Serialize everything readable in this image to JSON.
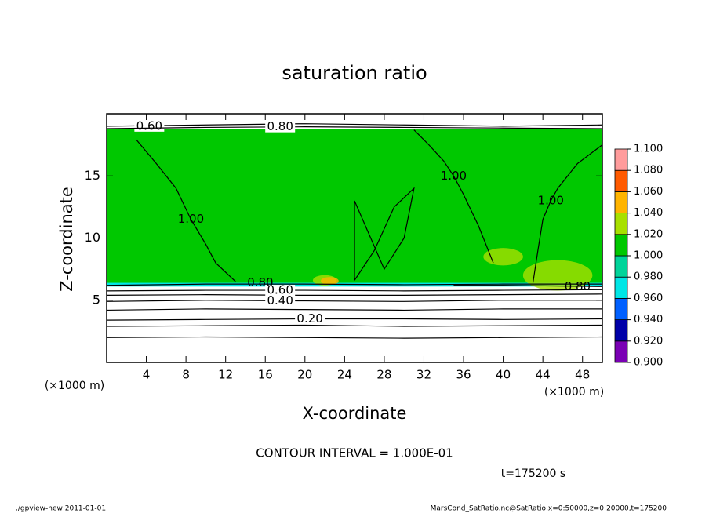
{
  "chart_data": {
    "type": "contour",
    "title": "saturation ratio",
    "xlabel": "X-coordinate",
    "ylabel": "Z-coordinate",
    "x_unit_label": "(×1000 m)",
    "xlim": [
      0,
      50
    ],
    "ylim": [
      0,
      20
    ],
    "xticks": [
      4,
      8,
      12,
      16,
      20,
      24,
      28,
      32,
      36,
      40,
      44,
      48
    ],
    "yticks": [
      5,
      10,
      15
    ],
    "colorbar": {
      "ticks": [
        {
          "value": 0.9,
          "label": "0.900"
        },
        {
          "value": 0.92,
          "label": "0.920"
        },
        {
          "value": 0.94,
          "label": "0.940"
        },
        {
          "value": 0.96,
          "label": "0.960"
        },
        {
          "value": 0.98,
          "label": "0.980"
        },
        {
          "value": 1.0,
          "label": "1.000"
        },
        {
          "value": 1.02,
          "label": "1.020"
        },
        {
          "value": 1.04,
          "label": "1.040"
        },
        {
          "value": 1.06,
          "label": "1.060"
        },
        {
          "value": 1.08,
          "label": "1.080"
        },
        {
          "value": 1.1,
          "label": "1.100"
        }
      ],
      "colors": [
        "#7a00b4",
        "#0000a8",
        "#0060ff",
        "#00e6e6",
        "#00d49a",
        "#00c800",
        "#a8e000",
        "#ffb400",
        "#ff5a00",
        "#ff9c9c"
      ]
    },
    "regions": [
      {
        "value": 0.97,
        "x": [
          0,
          50
        ],
        "z": [
          6.1,
          6.5
        ]
      },
      {
        "value": 1.01,
        "x": [
          0,
          50
        ],
        "z": [
          6.4,
          18.8
        ]
      },
      {
        "value": 1.03,
        "x": [
          45.5,
          22,
          40
        ],
        "z": [
          7.0,
          6.6,
          8.5
        ],
        "r": [
          3.5,
          1.2,
          2
        ]
      },
      {
        "value": 1.05,
        "x": [
          22.5
        ],
        "z": [
          6.55
        ],
        "r": [
          0.9
        ]
      }
    ],
    "contours": [
      {
        "level": 0.1,
        "x": [
          0,
          10,
          20,
          30,
          40,
          50
        ],
        "z": [
          2.0,
          2.05,
          2.0,
          1.95,
          2.0,
          2.05
        ]
      },
      {
        "level": 0.15,
        "x": [
          0,
          10,
          20,
          30,
          40,
          50
        ],
        "z": [
          2.9,
          2.95,
          3.0,
          2.9,
          2.95,
          3.0
        ]
      },
      {
        "level": 0.2,
        "label": "0.20",
        "label_at": [
          20.5,
          3.5
        ],
        "x": [
          0,
          10,
          20,
          30,
          40,
          50
        ],
        "z": [
          3.4,
          3.45,
          3.5,
          3.5,
          3.45,
          3.5
        ]
      },
      {
        "level": 0.3,
        "x": [
          0,
          10,
          20,
          30,
          40,
          50
        ],
        "z": [
          4.2,
          4.3,
          4.25,
          4.2,
          4.3,
          4.3
        ]
      },
      {
        "level": 0.4,
        "label": "0.40",
        "label_at": [
          17.5,
          4.95
        ],
        "x": [
          0,
          10,
          20,
          30,
          40,
          50
        ],
        "z": [
          4.9,
          5.0,
          4.95,
          4.9,
          5.0,
          5.0
        ]
      },
      {
        "level": 0.5,
        "x": [
          0,
          10,
          20,
          30,
          40,
          50
        ],
        "z": [
          5.4,
          5.45,
          5.4,
          5.4,
          5.45,
          5.5
        ]
      },
      {
        "level": 0.6,
        "label": "0.60",
        "label_at": [
          17.5,
          5.8
        ],
        "x": [
          0,
          10,
          20,
          30,
          40,
          50
        ],
        "z": [
          5.75,
          5.8,
          5.8,
          5.75,
          5.8,
          5.85
        ]
      },
      {
        "level": 0.8,
        "label": "0.80",
        "label_at": [
          15.5,
          6.4
        ],
        "x": [
          0,
          10,
          20,
          30,
          40,
          50
        ],
        "z": [
          6.2,
          6.3,
          6.3,
          6.25,
          6.3,
          6.3
        ]
      },
      {
        "level": 0.8,
        "label": "0.80",
        "label_at": [
          47.5,
          6.1
        ],
        "x": [
          35,
          40,
          45,
          50
        ],
        "z": [
          6.2,
          6.2,
          6.15,
          6.1
        ]
      },
      {
        "level": 0.6,
        "label": "0.60",
        "label_at": [
          4.3,
          19.0
        ],
        "x": [
          0,
          10,
          20,
          30,
          40,
          50
        ],
        "z": [
          19.0,
          19.1,
          19.2,
          19.1,
          19.0,
          19.1
        ]
      },
      {
        "level": 0.8,
        "label": "0.80",
        "label_at": [
          17.5,
          18.95
        ],
        "x": [
          0,
          10,
          20,
          30,
          40,
          50
        ],
        "z": [
          18.8,
          18.9,
          18.95,
          18.9,
          18.85,
          18.8
        ]
      },
      {
        "level": 1.0,
        "label": "1.00",
        "label_at": [
          8.5,
          11.5
        ],
        "x": [
          3,
          5,
          7,
          8.5,
          10,
          11,
          13
        ],
        "z": [
          17.9,
          16,
          14,
          11.5,
          9.5,
          8,
          6.5
        ]
      },
      {
        "level": 1.0,
        "label": "1.00",
        "label_at": [
          35,
          15
        ],
        "x": [
          31,
          32.5,
          34,
          35,
          36,
          37.5,
          39
        ],
        "z": [
          18.7,
          17.5,
          16.2,
          15,
          13.5,
          11,
          8
        ]
      },
      {
        "level": 1.0,
        "label": "1.00",
        "label_at": [
          44.8,
          13
        ],
        "x": [
          50,
          47.5,
          45.5,
          44.8,
          44,
          43.5,
          43
        ],
        "z": [
          17.5,
          16,
          14,
          13,
          11.5,
          9,
          6.4
        ]
      },
      {
        "level": 1.0,
        "x": [
          25,
          27,
          29,
          31,
          30,
          28,
          25,
          25
        ],
        "z": [
          6.6,
          9,
          12.5,
          14,
          10,
          7.5,
          13,
          6.6
        ]
      }
    ],
    "annotations": [
      "CONTOUR INTERVAL = 1.000E-01",
      "t=175200 s"
    ],
    "footer_left": "./gpview-new  2011-01-01",
    "footer_right": "MarsCond_SatRatio.nc@SatRatio,x=0:50000,z=0:20000,t=175200"
  }
}
